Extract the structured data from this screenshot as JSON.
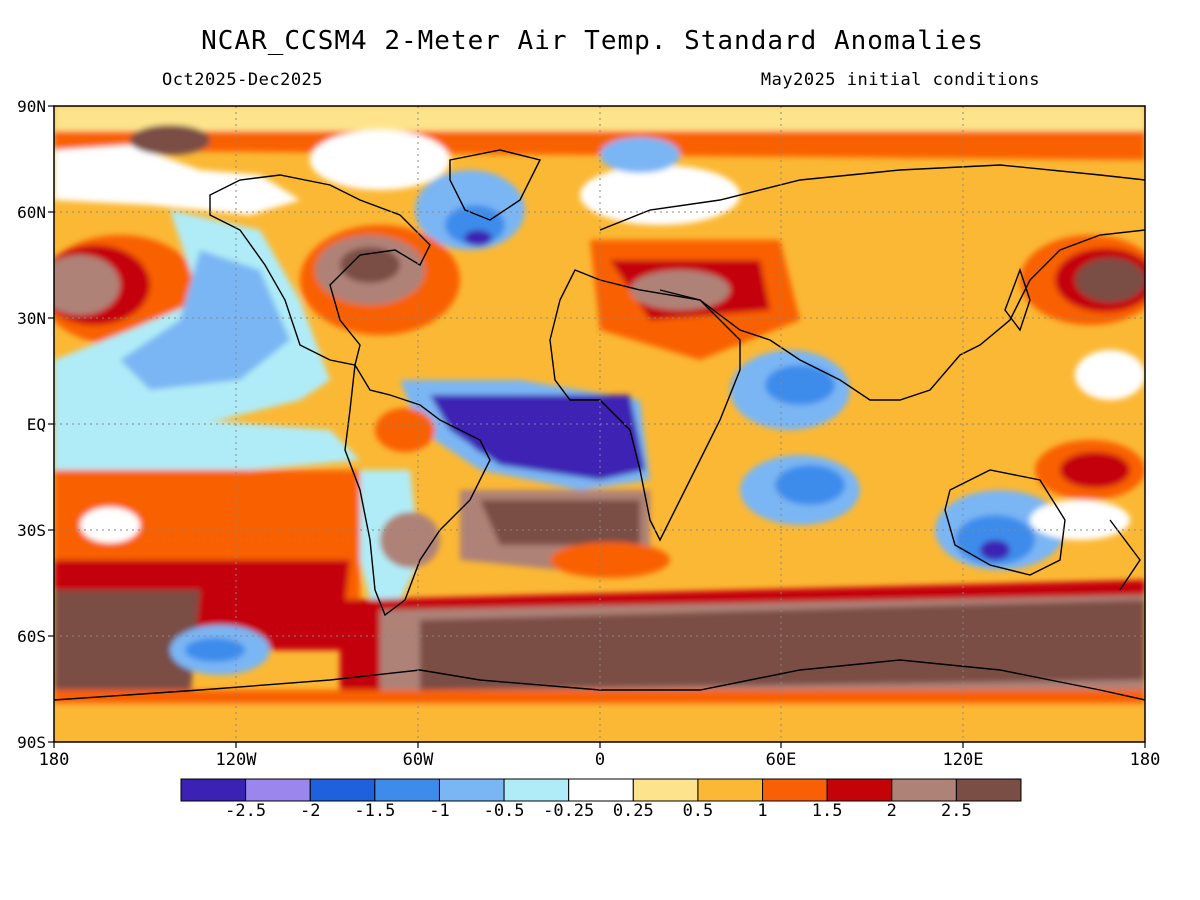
{
  "title": "NCAR_CCSM4 2-Meter Air Temp. Standard Anomalies",
  "subtitle_left": "Oct2025-Dec2025",
  "subtitle_right": "May2025 initial conditions",
  "lat_labels": [
    "90N",
    "60N",
    "30N",
    "EQ",
    "30S",
    "60S",
    "90S"
  ],
  "lon_labels": [
    "180",
    "120W",
    "60W",
    "0",
    "60E",
    "120E",
    "180"
  ],
  "colorbar": {
    "colors": [
      "#3c22b4",
      "#9b86ee",
      "#1f60dc",
      "#3d8cec",
      "#7ab6f4",
      "#b0ecf7",
      "#ffffff",
      "#fde48c",
      "#fbb834",
      "#f96005",
      "#c40308",
      "#af8277",
      "#7a4d45"
    ],
    "labels": [
      "-2.5",
      "-2",
      "-1.5",
      "-1",
      "-0.5",
      "-0.25",
      "0.25",
      "0.5",
      "1",
      "1.5",
      "2",
      "2.5"
    ]
  },
  "anomaly_regions": [
    {
      "name": "Tropical Atlantic / Equatorial Africa",
      "value": "below -2.5"
    },
    {
      "name": "Southeast Australia",
      "value": "below -2.5"
    },
    {
      "name": "North Atlantic",
      "value": "-2 to -1"
    },
    {
      "name": "Eastern Tropical Pacific",
      "value": "-0.5 to 0.25"
    },
    {
      "name": "Southern Ocean",
      "value": "above 2.5"
    },
    {
      "name": "North Pacific",
      "value": "above 2.5"
    },
    {
      "name": "Europe / North Africa",
      "value": "1.5 to 2.5"
    }
  ]
}
